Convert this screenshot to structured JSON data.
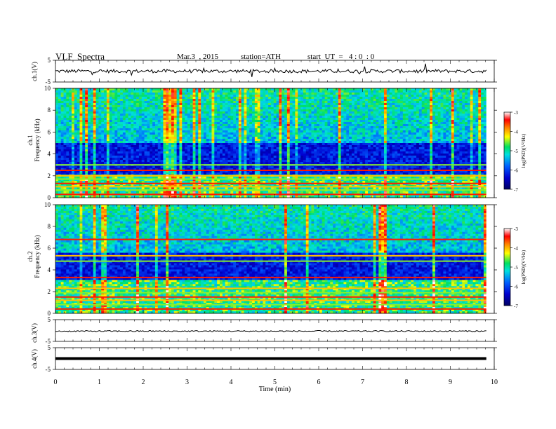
{
  "header": {
    "title": "VLF  Spectra",
    "date": "Mar.3  , 2015",
    "station": "station=ATH",
    "start": "start  UT  =   4 : 0  : 0"
  },
  "x_axis": {
    "label": "Time  (min)",
    "ticks": [
      0,
      1,
      2,
      3,
      4,
      5,
      6,
      7,
      8,
      9,
      10
    ],
    "range": [
      0,
      10
    ],
    "data_end": 9.82
  },
  "colorbar": {
    "label": "log(PSD)(V²/Hz)",
    "ticks": [
      -3,
      -4,
      -5,
      -6,
      -7
    ],
    "range": [
      -7,
      -3
    ]
  },
  "chart_data": [
    {
      "type": "line",
      "name": "ch1-waveform",
      "ylabel": "ch.1(V)",
      "yticks": [
        5,
        -5
      ],
      "ylim": [
        -5,
        5
      ],
      "x": [
        0,
        1,
        2,
        3,
        4,
        5,
        6,
        7,
        8,
        9,
        9.82
      ],
      "y": [
        0,
        0,
        0,
        0,
        0,
        0,
        0,
        0,
        0,
        0,
        0
      ]
    },
    {
      "type": "heatmap",
      "name": "ch1-spectrogram",
      "ylabel": "ch.1 Frequency (kHz)",
      "yticks": [
        0,
        2,
        4,
        6,
        8,
        10
      ],
      "ylim": [
        0,
        10
      ],
      "xlim": [
        0,
        9.82
      ],
      "zlim": [
        -7,
        -3
      ],
      "noise_floor_band_khz": [
        2.2,
        5.0
      ],
      "strong_lines_khz": [
        0.3,
        0.7,
        1.0,
        1.3,
        1.7,
        2.0,
        2.5,
        3.0
      ]
    },
    {
      "type": "heatmap",
      "name": "ch2-spectrogram",
      "ylabel": "ch.2 Frequency (kHz)",
      "yticks": [
        0,
        2,
        4,
        6,
        8,
        10
      ],
      "ylim": [
        0,
        10
      ],
      "xlim": [
        0,
        9.82
      ],
      "zlim": [
        -7,
        -3
      ],
      "noise_floor_band_khz": [
        3.0,
        5.5
      ],
      "strong_lines_khz": [
        0.4,
        0.8,
        1.2,
        1.5,
        1.9,
        2.3,
        3.3,
        4.8,
        5.3,
        6.8
      ]
    },
    {
      "type": "line",
      "name": "ch3-waveform",
      "ylabel": "ch.3(V)",
      "yticks": [
        5,
        -5
      ],
      "ylim": [
        -5,
        5
      ],
      "x": [
        0,
        1,
        2,
        3,
        4,
        5,
        6,
        7,
        8,
        9,
        9.82
      ],
      "y": [
        -0.3,
        -0.3,
        -0.3,
        -0.3,
        -0.3,
        -0.3,
        -0.3,
        -0.3,
        -0.3,
        -0.3,
        -0.3
      ]
    },
    {
      "type": "line",
      "name": "ch4-waveform",
      "ylabel": "ch.4(V)",
      "yticks": [
        5,
        -5
      ],
      "ylim": [
        -5,
        5
      ],
      "x": [
        0,
        1,
        2,
        3,
        4,
        5,
        6,
        7,
        8,
        9,
        9.82
      ],
      "y": [
        0,
        0,
        0,
        0,
        0,
        0,
        0,
        0,
        0,
        0,
        0
      ]
    }
  ]
}
